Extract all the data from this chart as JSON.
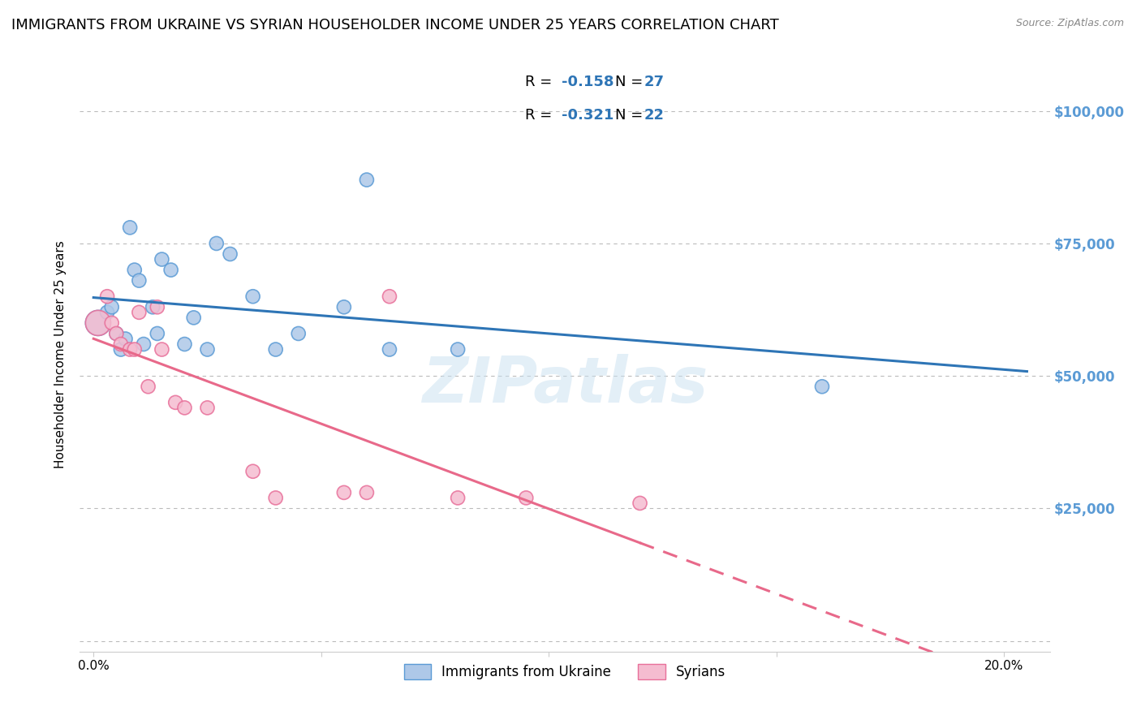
{
  "title": "IMMIGRANTS FROM UKRAINE VS SYRIAN HOUSEHOLDER INCOME UNDER 25 YEARS CORRELATION CHART",
  "source": "Source: ZipAtlas.com",
  "ylabel": "Householder Income Under 25 years",
  "xlabel_ticks": [
    "0.0%",
    "",
    "",
    "",
    "20.0%"
  ],
  "xlabel_vals": [
    0.0,
    0.05,
    0.1,
    0.15,
    0.2
  ],
  "ytick_vals": [
    0,
    25000,
    50000,
    75000,
    100000
  ],
  "ytick_labels": [
    "",
    "$25,000",
    "$50,000",
    "$75,000",
    "$100,000"
  ],
  "ylim": [
    -2000,
    110000
  ],
  "xlim": [
    -0.003,
    0.21
  ],
  "ukraine_R": -0.158,
  "ukraine_N": 27,
  "syria_R": -0.321,
  "syria_N": 22,
  "ukraine_x": [
    0.001,
    0.003,
    0.004,
    0.005,
    0.006,
    0.007,
    0.008,
    0.009,
    0.01,
    0.011,
    0.013,
    0.014,
    0.015,
    0.017,
    0.02,
    0.022,
    0.025,
    0.027,
    0.03,
    0.035,
    0.04,
    0.045,
    0.055,
    0.06,
    0.065,
    0.08,
    0.16
  ],
  "ukraine_y": [
    60000,
    62000,
    63000,
    58000,
    55000,
    57000,
    78000,
    70000,
    68000,
    56000,
    63000,
    58000,
    72000,
    70000,
    56000,
    61000,
    55000,
    75000,
    73000,
    65000,
    55000,
    58000,
    63000,
    87000,
    55000,
    55000,
    48000
  ],
  "ukraine_size": [
    500,
    150,
    150,
    150,
    150,
    150,
    150,
    150,
    150,
    150,
    150,
    150,
    150,
    150,
    150,
    150,
    150,
    150,
    150,
    150,
    150,
    150,
    150,
    150,
    150,
    150,
    150
  ],
  "syria_x": [
    0.001,
    0.003,
    0.004,
    0.005,
    0.006,
    0.008,
    0.009,
    0.01,
    0.012,
    0.014,
    0.015,
    0.018,
    0.02,
    0.025,
    0.035,
    0.04,
    0.055,
    0.06,
    0.065,
    0.08,
    0.095,
    0.12
  ],
  "syria_y": [
    60000,
    65000,
    60000,
    58000,
    56000,
    55000,
    55000,
    62000,
    48000,
    63000,
    55000,
    45000,
    44000,
    44000,
    32000,
    27000,
    28000,
    28000,
    65000,
    27000,
    27000,
    26000
  ],
  "syria_size": [
    500,
    150,
    150,
    150,
    150,
    150,
    150,
    150,
    150,
    150,
    150,
    150,
    150,
    150,
    150,
    150,
    150,
    150,
    150,
    150,
    150,
    150
  ],
  "ukraine_color": "#aec8e8",
  "ukraine_edge_color": "#5b9bd5",
  "syria_color": "#f5bcd0",
  "syria_edge_color": "#e8709a",
  "ukraine_line_color": "#2e75b6",
  "syria_line_color": "#e8698a",
  "legend_ukraine_label": "Immigrants from Ukraine",
  "legend_syria_label": "Syrians",
  "watermark": "ZIPatlas",
  "right_tick_color": "#5b9bd5",
  "background_color": "#ffffff",
  "grid_color": "#bbbbbb",
  "title_fontsize": 13,
  "axis_label_fontsize": 11,
  "tick_fontsize": 11,
  "legend_R_color": "#000000",
  "legend_val_color": "#2e75b6"
}
